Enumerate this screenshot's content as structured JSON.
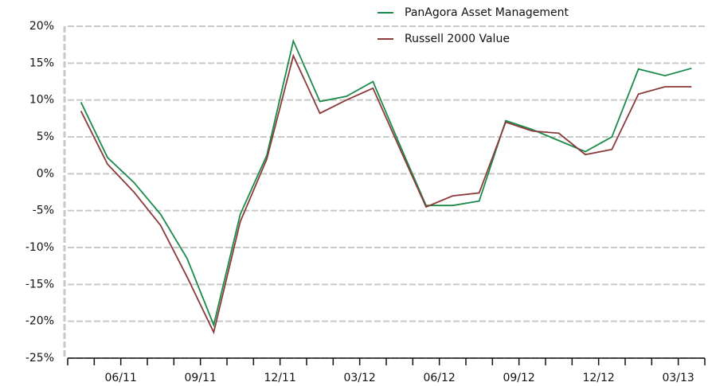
{
  "chart_data": {
    "type": "line",
    "categories": [
      null,
      null,
      "06/11",
      null,
      null,
      "09/11",
      null,
      null,
      "12/11",
      null,
      null,
      "03/12",
      null,
      null,
      "06/12",
      null,
      null,
      "09/12",
      null,
      null,
      "12/12",
      null,
      null,
      "03/13"
    ],
    "series": [
      {
        "name": "PanAgora Asset Management",
        "color": "#1a8a4a",
        "values": [
          9.7,
          2.2,
          -1.2,
          -5.5,
          -11.5,
          -20.5,
          -5.5,
          2.5,
          18.0,
          9.8,
          10.5,
          12.5,
          4.0,
          -4.3,
          -4.3,
          -3.7,
          7.2,
          6.0,
          4.5,
          3.0,
          5.0,
          14.2,
          13.3,
          14.3
        ]
      },
      {
        "name": "Russell 2000 Value",
        "color": "#8b3a3a",
        "values": [
          8.5,
          1.3,
          -2.5,
          -7.0,
          -14.0,
          -21.5,
          -6.5,
          2.0,
          16.0,
          8.2,
          10.0,
          11.6,
          3.5,
          -4.5,
          -3.0,
          -2.6,
          7.0,
          5.8,
          5.5,
          2.6,
          3.3,
          10.8,
          11.8,
          11.8
        ]
      }
    ],
    "ylim": [
      -25,
      20
    ],
    "yticks": [
      {
        "value": -25,
        "label": "-25%"
      },
      {
        "value": -20,
        "label": "-20%"
      },
      {
        "value": -15,
        "label": "-15%"
      },
      {
        "value": -10,
        "label": "-10%"
      },
      {
        "value": -5,
        "label": "-5%"
      },
      {
        "value": 0,
        "label": "0%"
      },
      {
        "value": 5,
        "label": "5%"
      },
      {
        "value": 10,
        "label": "10%"
      },
      {
        "value": 15,
        "label": "15%"
      },
      {
        "value": 20,
        "label": "20%"
      }
    ],
    "grid": true
  }
}
